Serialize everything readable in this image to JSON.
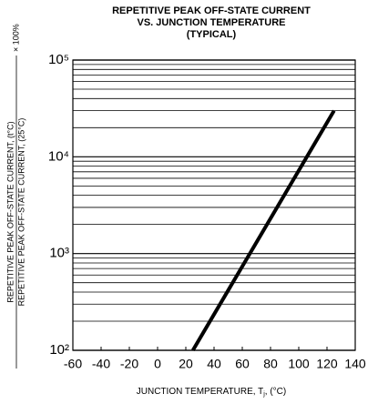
{
  "chart_data": {
    "type": "line",
    "title": [
      "REPETITIVE PEAK OFF-STATE CURRENT",
      "VS. JUNCTION TEMPERATURE",
      "(TYPICAL)"
    ],
    "x_label": [
      "JUNCTION TEMPERATURE, T",
      "j",
      ", (°C)"
    ],
    "y_label": {
      "numerator": "REPETITIVE PEAK OFF-STATE CURRENT, (t°C)",
      "denominator": "REPETITIVE PEAK OFF-STATE CURRENT, (25°C)",
      "suffix": "× 100%"
    },
    "x": [
      25,
      125
    ],
    "series": [
      {
        "color": "#000000",
        "values": [
          100,
          30000
        ]
      }
    ],
    "xlim": [
      -60,
      140
    ],
    "xticks": [
      -60,
      -40,
      -20,
      0,
      20,
      40,
      60,
      80,
      100,
      120,
      140
    ],
    "ylim": [
      100,
      100000
    ],
    "log_y": true,
    "yticks": [
      {
        "value": 100,
        "label": "10²"
      },
      {
        "value": 1000,
        "label": "10³"
      },
      {
        "value": 10000,
        "label": "10⁴"
      },
      {
        "value": 100000,
        "label": "10⁵"
      }
    ],
    "yminor": [
      200,
      300,
      400,
      500,
      600,
      700,
      800,
      900,
      2000,
      3000,
      4000,
      5000,
      6000,
      7000,
      8000,
      9000,
      20000,
      30000,
      40000,
      50000,
      60000,
      70000,
      80000,
      90000
    ],
    "grid": true
  }
}
